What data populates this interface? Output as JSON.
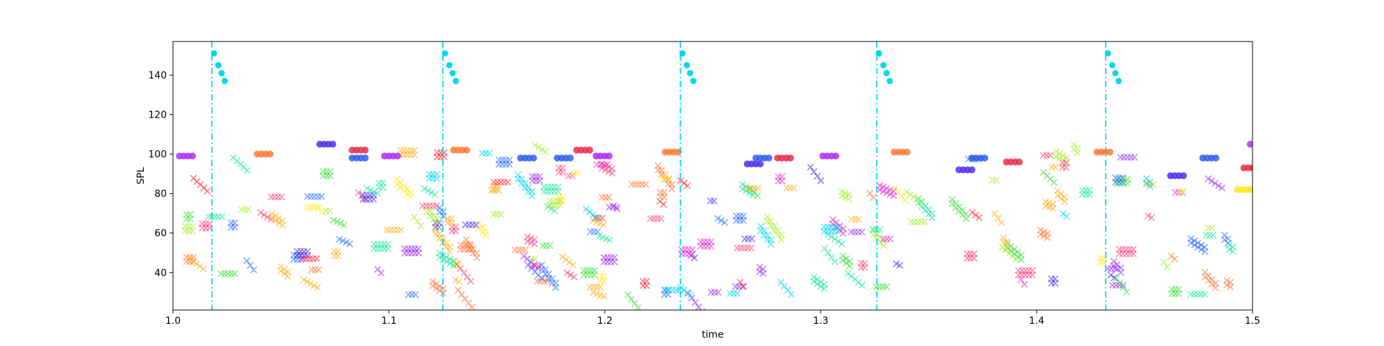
{
  "chart_data": {
    "type": "scatter",
    "title": "",
    "xlabel": "time",
    "ylabel": "SPL",
    "xlim": [
      1.0,
      1.5
    ],
    "ylim": [
      21,
      157
    ],
    "xticks": [
      1.0,
      1.1,
      1.2,
      1.3,
      1.4,
      1.5
    ],
    "xtick_labels": [
      "1.0",
      "1.1",
      "1.2",
      "1.3",
      "1.4",
      "1.5"
    ],
    "yticks": [
      40,
      60,
      80,
      100,
      120,
      140
    ],
    "ytick_labels": [
      "40",
      "60",
      "80",
      "100",
      "120",
      "140"
    ],
    "grid": false,
    "legend": "none",
    "beat_lines": {
      "x": [
        1.018,
        1.125,
        1.235,
        1.326,
        1.432
      ],
      "color": "#00d8f0",
      "style": "dash-dot"
    },
    "beat_markers": {
      "marker": "circle",
      "color": "#00d8f0",
      "points": [
        [
          1.019,
          151
        ],
        [
          1.021,
          145
        ],
        [
          1.0225,
          141
        ],
        [
          1.024,
          137
        ],
        [
          1.126,
          151
        ],
        [
          1.128,
          145
        ],
        [
          1.1295,
          141
        ],
        [
          1.131,
          137
        ],
        [
          1.236,
          151
        ],
        [
          1.238,
          145
        ],
        [
          1.2395,
          141
        ],
        [
          1.241,
          137
        ],
        [
          1.327,
          151
        ],
        [
          1.329,
          145
        ],
        [
          1.3305,
          141
        ],
        [
          1.332,
          137
        ],
        [
          1.433,
          151
        ],
        [
          1.435,
          145
        ],
        [
          1.4365,
          141
        ],
        [
          1.438,
          137
        ]
      ]
    },
    "note_series": [
      {
        "marker": "circle",
        "color": "#b030f0",
        "points": [
          [
            1.003,
            99
          ],
          [
            1.005,
            99
          ],
          [
            1.007,
            99
          ],
          [
            1.009,
            99
          ]
        ]
      },
      {
        "marker": "circle",
        "color": "#ff7a3a",
        "points": [
          [
            1.039,
            100
          ],
          [
            1.041,
            100
          ],
          [
            1.043,
            100
          ],
          [
            1.045,
            100
          ]
        ]
      },
      {
        "marker": "circle",
        "color": "#5030f0",
        "points": [
          [
            1.068,
            105
          ],
          [
            1.07,
            105
          ],
          [
            1.072,
            105
          ],
          [
            1.074,
            105
          ]
        ]
      },
      {
        "marker": "circle",
        "color": "#e8304f",
        "points": [
          [
            1.083,
            102
          ],
          [
            1.085,
            102
          ],
          [
            1.087,
            102
          ],
          [
            1.089,
            102
          ]
        ]
      },
      {
        "marker": "circle",
        "color": "#3060f0",
        "points": [
          [
            1.083,
            98
          ],
          [
            1.085,
            98
          ],
          [
            1.087,
            98
          ],
          [
            1.089,
            98
          ]
        ]
      },
      {
        "marker": "circle",
        "color": "#b030f0",
        "points": [
          [
            1.098,
            99
          ],
          [
            1.1,
            99
          ],
          [
            1.102,
            99
          ],
          [
            1.104,
            99
          ]
        ]
      },
      {
        "marker": "circle",
        "color": "#ff7a3a",
        "points": [
          [
            1.13,
            102
          ],
          [
            1.132,
            102
          ],
          [
            1.134,
            102
          ],
          [
            1.136,
            102
          ]
        ]
      },
      {
        "marker": "circle",
        "color": "#3060f0",
        "points": [
          [
            1.161,
            98
          ],
          [
            1.163,
            98
          ],
          [
            1.165,
            98
          ],
          [
            1.167,
            98
          ]
        ]
      },
      {
        "marker": "circle",
        "color": "#3060f0",
        "points": [
          [
            1.178,
            98
          ],
          [
            1.18,
            98
          ],
          [
            1.182,
            98
          ],
          [
            1.184,
            98
          ]
        ]
      },
      {
        "marker": "circle",
        "color": "#e8304f",
        "points": [
          [
            1.187,
            102
          ],
          [
            1.189,
            102
          ],
          [
            1.191,
            102
          ],
          [
            1.193,
            102
          ]
        ]
      },
      {
        "marker": "circle",
        "color": "#b030f0",
        "points": [
          [
            1.196,
            99
          ],
          [
            1.198,
            99
          ],
          [
            1.2,
            99
          ],
          [
            1.202,
            99
          ]
        ]
      },
      {
        "marker": "circle",
        "color": "#ff7a3a",
        "points": [
          [
            1.228,
            101
          ],
          [
            1.23,
            101
          ],
          [
            1.232,
            101
          ],
          [
            1.234,
            101
          ]
        ]
      },
      {
        "marker": "circle",
        "color": "#3060f0",
        "points": [
          [
            1.27,
            98
          ],
          [
            1.272,
            98
          ],
          [
            1.274,
            98
          ],
          [
            1.276,
            98
          ]
        ]
      },
      {
        "marker": "circle",
        "color": "#5030f0",
        "points": [
          [
            1.266,
            95
          ],
          [
            1.268,
            95
          ],
          [
            1.27,
            95
          ],
          [
            1.272,
            95
          ]
        ]
      },
      {
        "marker": "circle",
        "color": "#e8304f",
        "points": [
          [
            1.28,
            98
          ],
          [
            1.282,
            98
          ],
          [
            1.284,
            98
          ],
          [
            1.286,
            98
          ]
        ]
      },
      {
        "marker": "circle",
        "color": "#b030f0",
        "points": [
          [
            1.301,
            99
          ],
          [
            1.303,
            99
          ],
          [
            1.305,
            99
          ],
          [
            1.307,
            99
          ]
        ]
      },
      {
        "marker": "circle",
        "color": "#ff7a3a",
        "points": [
          [
            1.334,
            101
          ],
          [
            1.336,
            101
          ],
          [
            1.338,
            101
          ],
          [
            1.34,
            101
          ]
        ]
      },
      {
        "marker": "circle",
        "color": "#5030f0",
        "points": [
          [
            1.364,
            92
          ],
          [
            1.366,
            92
          ],
          [
            1.368,
            92
          ],
          [
            1.37,
            92
          ]
        ]
      },
      {
        "marker": "circle",
        "color": "#3060f0",
        "points": [
          [
            1.37,
            98
          ],
          [
            1.372,
            98
          ],
          [
            1.374,
            98
          ],
          [
            1.376,
            98
          ]
        ]
      },
      {
        "marker": "circle",
        "color": "#e8304f",
        "points": [
          [
            1.386,
            96
          ],
          [
            1.388,
            96
          ],
          [
            1.39,
            96
          ],
          [
            1.392,
            96
          ]
        ]
      },
      {
        "marker": "circle",
        "color": "#ff7a3a",
        "points": [
          [
            1.428,
            101
          ],
          [
            1.43,
            101
          ],
          [
            1.432,
            101
          ],
          [
            1.434,
            101
          ]
        ]
      },
      {
        "marker": "circle",
        "color": "#5030f0",
        "points": [
          [
            1.462,
            89
          ],
          [
            1.464,
            89
          ],
          [
            1.466,
            89
          ],
          [
            1.468,
            89
          ]
        ]
      },
      {
        "marker": "circle",
        "color": "#3060f0",
        "points": [
          [
            1.477,
            98
          ],
          [
            1.479,
            98
          ],
          [
            1.481,
            98
          ],
          [
            1.483,
            98
          ]
        ]
      },
      {
        "marker": "circle",
        "color": "#ffe820",
        "points": [
          [
            1.493,
            82
          ],
          [
            1.495,
            82
          ],
          [
            1.497,
            82
          ],
          [
            1.499,
            82
          ]
        ]
      },
      {
        "marker": "circle",
        "color": "#e8304f",
        "points": [
          [
            1.496,
            93
          ],
          [
            1.498,
            93
          ],
          [
            1.5,
            93
          ]
        ]
      },
      {
        "marker": "circle",
        "color": "#b030f0",
        "points": [
          [
            1.499,
            105
          ]
        ]
      }
    ],
    "cross_palette": [
      "#ff2a3a",
      "#ff7a3a",
      "#ffb020",
      "#ffe820",
      "#a8f030",
      "#40e040",
      "#20e8a0",
      "#00d8f0",
      "#3070ff",
      "#5028f0",
      "#9a30f0",
      "#e030d0",
      "#ff4080"
    ],
    "cross_note_seed": 20240611,
    "cross_note_count": 210
  }
}
